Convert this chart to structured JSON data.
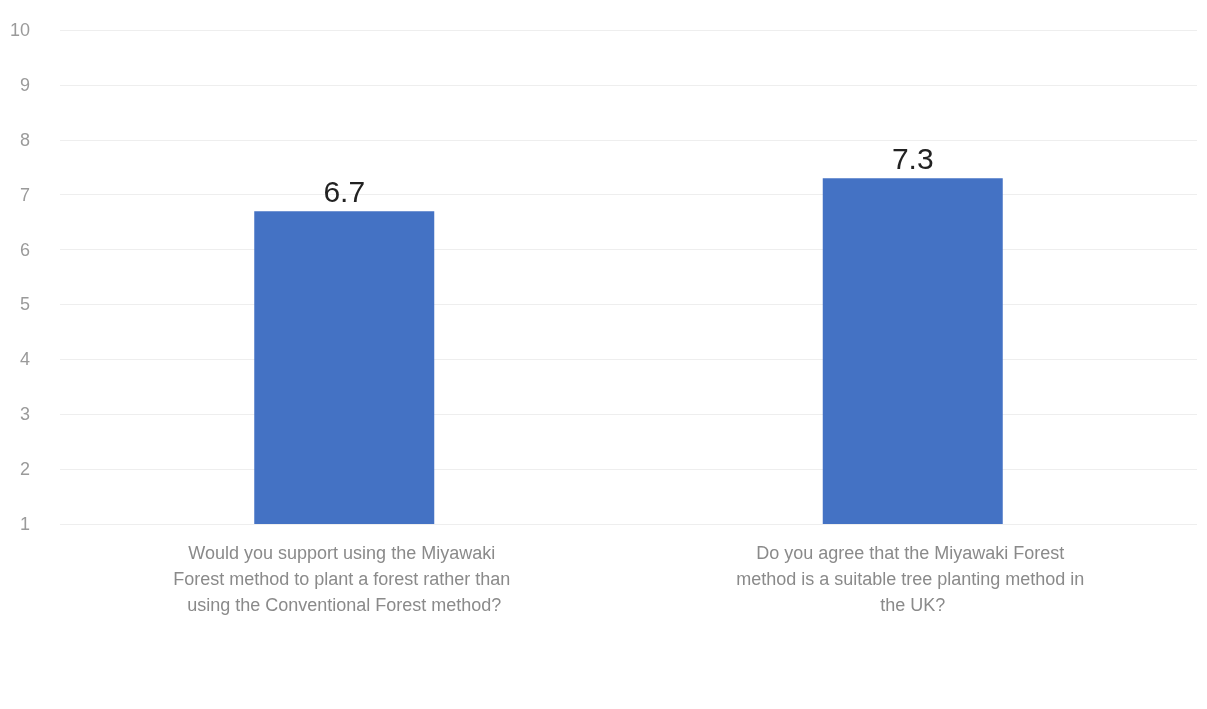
{
  "chart_data": {
    "type": "bar",
    "categories": [
      "Would you support using the Miyawaki Forest method to plant a forest rather than using the Conventional Forest method?",
      "Do you agree that the Miyawaki Forest method is a suitable tree planting method in the UK?"
    ],
    "values": [
      6.7,
      7.3
    ],
    "color": "#4472c4",
    "ylim": [
      1,
      10
    ],
    "yticks": [
      1,
      2,
      3,
      4,
      5,
      6,
      7,
      8,
      9,
      10
    ],
    "grid": "y",
    "data_labels": true
  }
}
